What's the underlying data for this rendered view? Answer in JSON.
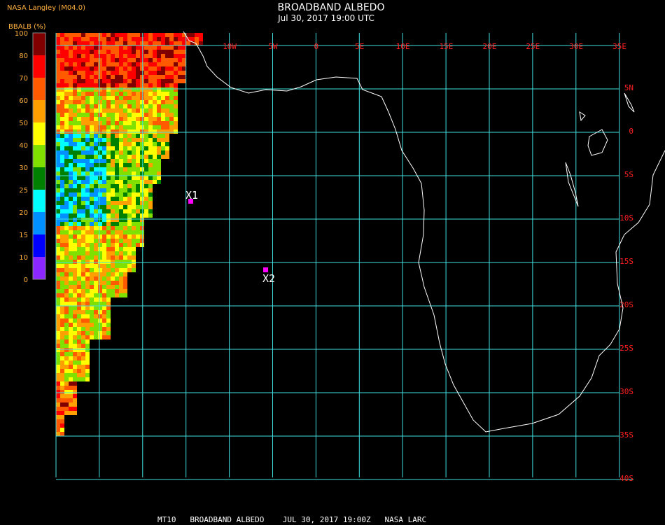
{
  "header": {
    "title": "BROADBAND ALBEDO",
    "subtitle": "Jul 30, 2017 19:00 UTC",
    "provider": "NASA Langley (M04.0)"
  },
  "legend": {
    "title": "BBALB (%)",
    "ticks": [
      "100",
      "80",
      "70",
      "60",
      "50",
      "40",
      "30",
      "25",
      "20",
      "15",
      "10",
      "0"
    ],
    "colors": [
      "#800000",
      "#ff0000",
      "#ff5a00",
      "#ffa000",
      "#ffff00",
      "#80e000",
      "#008000",
      "#00ffff",
      "#0090ff",
      "#0000ff",
      "#8c28ff"
    ]
  },
  "map": {
    "lon_labels": [
      "10W",
      "5W",
      "0",
      "5E",
      "10E",
      "15E",
      "20E",
      "25E",
      "30E",
      "35E"
    ],
    "lat_labels": [
      "5N",
      "0",
      "5S",
      "10S",
      "15S",
      "20S",
      "25S",
      "30S",
      "35S",
      "40S"
    ],
    "markers": [
      "X1",
      "X2"
    ]
  },
  "footer": {
    "text": "MT10   BROADBAND ALBEDO    JUL 30, 2017 19:00Z   NASA LARC"
  }
}
